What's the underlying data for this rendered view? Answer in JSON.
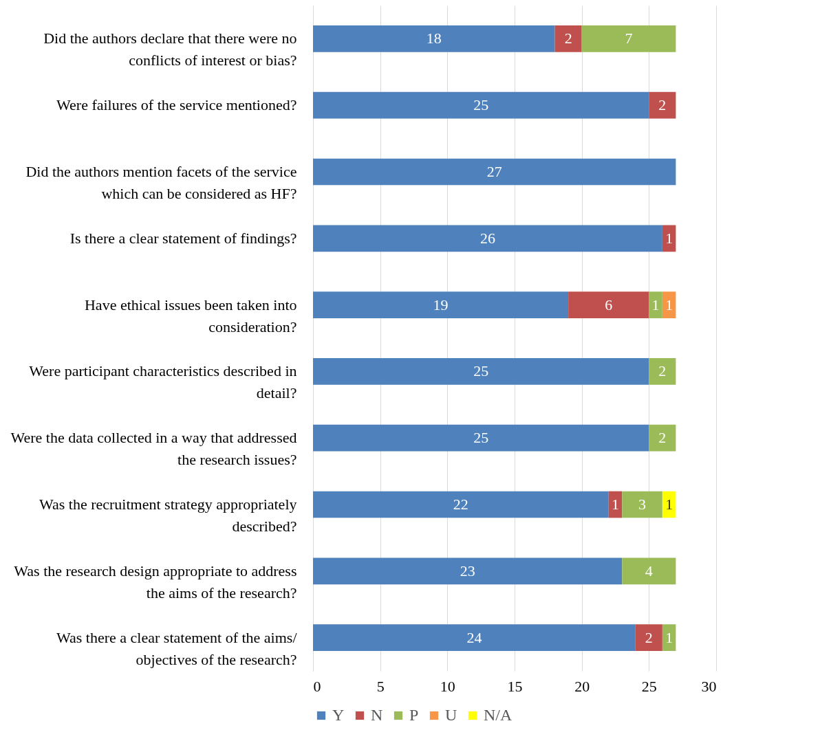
{
  "chart_data": {
    "type": "bar",
    "orientation": "horizontal",
    "stacked": true,
    "data_labels": true,
    "grid": "x",
    "legend": "bottom",
    "categories": [
      "Did the authors declare that there were no conflicts of interest or bias?",
      "Were failures of the service mentioned?",
      "Did the authors mention facets of the service which can be considered as HF?",
      "Is there a clear statement of findings?",
      "Have ethical issues been taken into consideration?",
      "Were participant characteristics described in detail?",
      "Were the data collected in a way that addressed the research issues?",
      "Was the recruitment strategy appropriately described?",
      "Was the research design appropriate to address the aims of the research?",
      "Was there a clear statement of the aims/ objectives of the research?"
    ],
    "xlim": [
      0,
      30
    ],
    "xticks": [
      0,
      5,
      10,
      15,
      20,
      25,
      30
    ],
    "series": [
      {
        "name": "Y",
        "color": "#4f81bd",
        "values": [
          18,
          25,
          27,
          26,
          19,
          25,
          25,
          22,
          23,
          24
        ]
      },
      {
        "name": "N",
        "color": "#c0504d",
        "values": [
          2,
          2,
          null,
          1,
          6,
          null,
          null,
          1,
          null,
          2
        ]
      },
      {
        "name": "P",
        "color": "#9bbb59",
        "values": [
          7,
          null,
          null,
          null,
          1,
          2,
          2,
          3,
          4,
          1
        ]
      },
      {
        "name": "U",
        "color": "#f79646",
        "values": [
          null,
          null,
          null,
          null,
          1,
          null,
          null,
          null,
          null,
          null
        ]
      },
      {
        "name": "N/A",
        "color": "#ffff00",
        "values": [
          null,
          null,
          null,
          null,
          null,
          null,
          null,
          1,
          null,
          null
        ]
      }
    ]
  }
}
